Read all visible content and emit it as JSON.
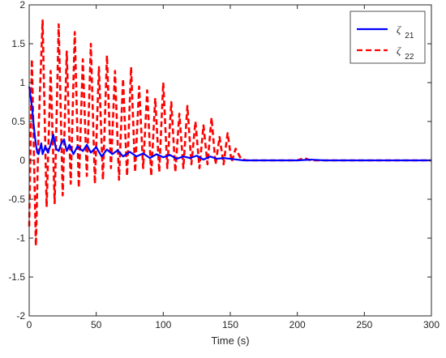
{
  "chart_data": {
    "type": "line",
    "title": "",
    "xlabel": "Time (s)",
    "ylabel": "",
    "xlim": [
      0,
      300
    ],
    "ylim": [
      -2,
      2
    ],
    "xticks": [
      "0",
      "50",
      "100",
      "150",
      "200",
      "250",
      "300"
    ],
    "yticks": [
      "-2",
      "-1.5",
      "-1",
      "-0.5",
      "0",
      "0.5",
      "1",
      "1.5",
      "2"
    ],
    "grid": false,
    "legend_position": "top-right",
    "series": [
      {
        "name": "ζ",
        "subscript": "21",
        "color": "#0000ff",
        "style": "solid",
        "x": [
          0,
          1,
          2,
          3,
          4,
          5,
          6,
          7,
          8,
          9,
          10,
          12,
          14,
          16,
          18,
          20,
          22,
          24,
          26,
          28,
          30,
          33,
          36,
          40,
          43,
          46,
          50,
          54,
          58,
          62,
          66,
          70,
          75,
          80,
          85,
          90,
          95,
          100,
          105,
          110,
          115,
          120,
          125,
          130,
          135,
          140,
          145,
          150,
          155,
          160,
          170,
          180,
          200,
          210,
          220,
          250,
          300
        ],
        "y": [
          0.95,
          0.82,
          0.7,
          0.52,
          0.35,
          0.2,
          0.1,
          0.08,
          0.15,
          0.22,
          0.08,
          0.18,
          0.1,
          0.2,
          0.33,
          0.15,
          0.12,
          0.22,
          0.27,
          0.12,
          0.2,
          0.08,
          0.18,
          0.12,
          0.2,
          0.1,
          0.17,
          0.05,
          0.14,
          0.08,
          0.13,
          0.05,
          0.11,
          0.05,
          0.09,
          0.03,
          0.08,
          0.04,
          0.07,
          0.02,
          0.05,
          0.03,
          0.06,
          0.01,
          0.05,
          0.02,
          0.03,
          0.02,
          0.01,
          0.0,
          0.0,
          0.0,
          0.0,
          0.01,
          0.0,
          0.0,
          0.0
        ]
      },
      {
        "name": "ζ",
        "subscript": "22",
        "color": "#ff0000",
        "style": "dashed",
        "x": [
          0,
          2,
          5,
          7,
          10,
          13,
          16,
          19,
          22,
          25,
          28,
          31,
          34,
          37,
          40,
          43,
          46,
          49,
          52,
          55,
          58,
          61,
          64,
          67,
          70,
          73,
          76,
          79,
          82,
          85,
          88,
          91,
          94,
          97,
          100,
          103,
          106,
          109,
          112,
          115,
          118,
          121,
          124,
          127,
          130,
          133,
          136,
          139,
          142,
          145,
          148,
          151,
          154,
          158,
          162,
          170,
          180,
          200,
          205,
          210,
          250,
          300
        ],
        "y": [
          -0.85,
          1.3,
          -1.1,
          0.4,
          1.8,
          -0.6,
          1.15,
          -0.55,
          1.75,
          -0.45,
          1.4,
          -0.3,
          1.65,
          -0.35,
          1.3,
          -0.2,
          1.5,
          -0.3,
          1.2,
          -0.25,
          1.35,
          -0.1,
          1.15,
          -0.25,
          1.05,
          -0.2,
          1.2,
          -0.15,
          0.95,
          -0.1,
          0.9,
          -0.2,
          0.8,
          -0.15,
          1.0,
          -0.1,
          0.75,
          -0.15,
          0.6,
          -0.1,
          0.7,
          -0.05,
          0.5,
          -0.1,
          0.45,
          -0.05,
          0.55,
          -0.05,
          0.3,
          -0.05,
          0.35,
          -0.02,
          0.15,
          0.02,
          0.0,
          0.0,
          0.0,
          0.0,
          0.03,
          0.0,
          0.0,
          0.0
        ]
      }
    ]
  }
}
